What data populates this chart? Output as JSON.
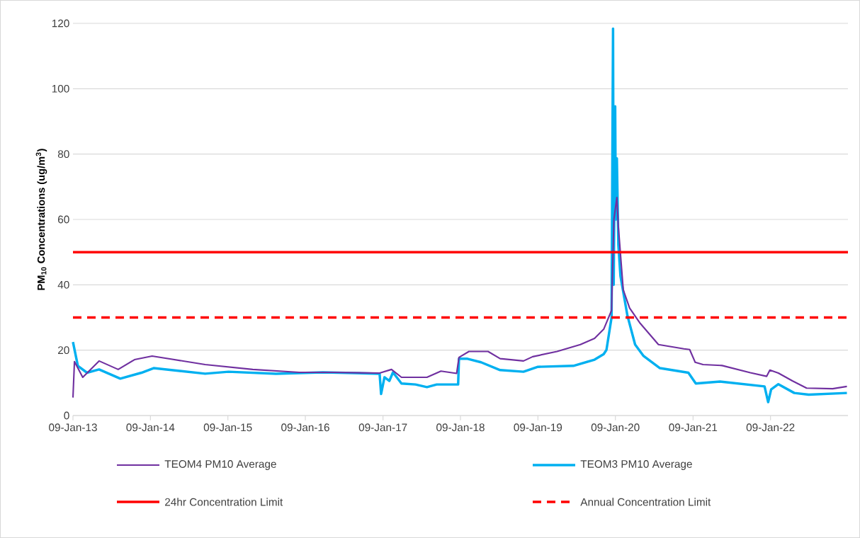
{
  "chart_data": {
    "type": "line",
    "ylabel": "PM$_{10}$ Concentrations (ug/m$^{3}$)",
    "xlim": [
      "2013-01-09",
      "2023-01-09"
    ],
    "xticks": [
      {
        "value": "2013-01-09",
        "label": "09-Jan-13"
      },
      {
        "value": "2014-01-09",
        "label": "09-Jan-14"
      },
      {
        "value": "2015-01-09",
        "label": "09-Jan-15"
      },
      {
        "value": "2016-01-09",
        "label": "09-Jan-16"
      },
      {
        "value": "2017-01-09",
        "label": "09-Jan-17"
      },
      {
        "value": "2018-01-09",
        "label": "09-Jan-18"
      },
      {
        "value": "2019-01-09",
        "label": "09-Jan-19"
      },
      {
        "value": "2020-01-09",
        "label": "09-Jan-20"
      },
      {
        "value": "2021-01-09",
        "label": "09-Jan-21"
      },
      {
        "value": "2022-01-09",
        "label": "09-Jan-22"
      }
    ],
    "ylim": [
      0,
      120
    ],
    "yticks": [
      0,
      20,
      40,
      60,
      80,
      100,
      120
    ],
    "grid": "y",
    "legend": "bottom",
    "marker": "none",
    "line_style": "solid",
    "series": [
      {
        "name": "TEOM4 PM10 Average",
        "color": "#7030a0",
        "x": [
          "2013-01-09",
          "2013-01-16",
          "2013-02-24",
          "2013-05-12",
          "2013-08-10",
          "2013-10-26",
          "2014-01-17",
          "2014-09-24",
          "2015-05-06",
          "2015-12-11",
          "2016-05-25",
          "2016-12-24",
          "2017-02-18",
          "2017-04-06",
          "2017-08-04",
          "2017-10-09",
          "2017-12-22",
          "2018-01-02",
          "2018-02-18",
          "2018-05-19",
          "2018-07-15",
          "2018-11-02",
          "2018-12-15",
          "2019-04-09",
          "2019-07-28",
          "2019-10-03",
          "2019-11-15",
          "2019-12-22",
          "2020-01-02",
          "2020-01-16",
          "2020-01-23",
          "2020-02-15",
          "2020-03-16",
          "2020-05-05",
          "2020-07-30",
          "2020-11-27",
          "2020-12-24",
          "2021-01-19",
          "2021-02-25",
          "2021-05-26",
          "2021-10-06",
          "2021-12-22",
          "2022-01-06",
          "2022-02-15",
          "2022-04-22",
          "2022-06-28",
          "2022-10-29",
          "2023-01-04"
        ],
        "values": [
          5.5,
          16.5,
          11.7,
          16.7,
          14.1,
          17.1,
          18.2,
          15.6,
          14.1,
          13.2,
          13.2,
          13.0,
          14.1,
          11.7,
          11.7,
          13.6,
          12.9,
          17.8,
          19.6,
          19.6,
          17.4,
          16.7,
          18.0,
          19.6,
          21.7,
          23.6,
          26.4,
          32.2,
          60,
          66.7,
          57.8,
          38.5,
          32.9,
          28.2,
          21.7,
          20.4,
          20.2,
          16.3,
          15.6,
          15.3,
          13.1,
          12.0,
          13.9,
          13.0,
          10.6,
          8.4,
          8.2,
          8.9
        ]
      },
      {
        "name": "TEOM3 PM10  Average",
        "color": "#00b0f0",
        "x": [
          "2013-01-09",
          "2013-02-01",
          "2013-03-16",
          "2013-05-12",
          "2013-08-20",
          "2013-11-28",
          "2014-01-24",
          "2014-09-24",
          "2015-01-12",
          "2015-08-24",
          "2016-04-01",
          "2016-12-24",
          "2016-12-31",
          "2017-01-16",
          "2017-02-08",
          "2017-02-25",
          "2017-04-06",
          "2017-06-11",
          "2017-08-04",
          "2017-09-19",
          "2017-12-29",
          "2018-01-02",
          "2018-02-08",
          "2018-04-16",
          "2018-07-15",
          "2018-11-02",
          "2019-01-09",
          "2019-06-25",
          "2019-10-03",
          "2019-11-15",
          "2019-11-28",
          "2019-12-22",
          "2019-12-29",
          "2020-01-01",
          "2020-01-08",
          "2020-01-11",
          "2020-01-16",
          "2020-01-23",
          "2020-02-02",
          "2020-03-06",
          "2020-04-11",
          "2020-05-21",
          "2020-08-06",
          "2020-12-18",
          "2021-01-22",
          "2021-05-16",
          "2021-12-12",
          "2021-12-29",
          "2022-01-12",
          "2022-02-15",
          "2022-05-01",
          "2022-07-08",
          "2023-01-04"
        ],
        "values": [
          22.5,
          15.2,
          13.1,
          14.1,
          11.3,
          13.1,
          14.5,
          12.8,
          13.4,
          12.8,
          13.2,
          12.8,
          6.6,
          11.7,
          10.6,
          13.2,
          9.8,
          9.5,
          8.7,
          9.5,
          9.5,
          17.4,
          17.4,
          16.3,
          13.9,
          13.4,
          14.9,
          15.2,
          17.1,
          18.8,
          20.1,
          30,
          118.4,
          40,
          94.6,
          60,
          78.7,
          52.2,
          42.7,
          30.5,
          21.7,
          18.2,
          14.5,
          13.1,
          9.8,
          10.4,
          8.9,
          4.1,
          8.0,
          9.6,
          6.9,
          6.4,
          6.9
        ]
      }
    ],
    "ref_lines": [
      {
        "axis": "y",
        "value": 50,
        "label": "24hr Concentration Limit",
        "color": "#ff0000",
        "line_style": "solid"
      },
      {
        "axis": "y",
        "value": 30,
        "label": "Annual Concentration Limit",
        "color": "#ff0000",
        "line_style": "dashed"
      }
    ]
  }
}
